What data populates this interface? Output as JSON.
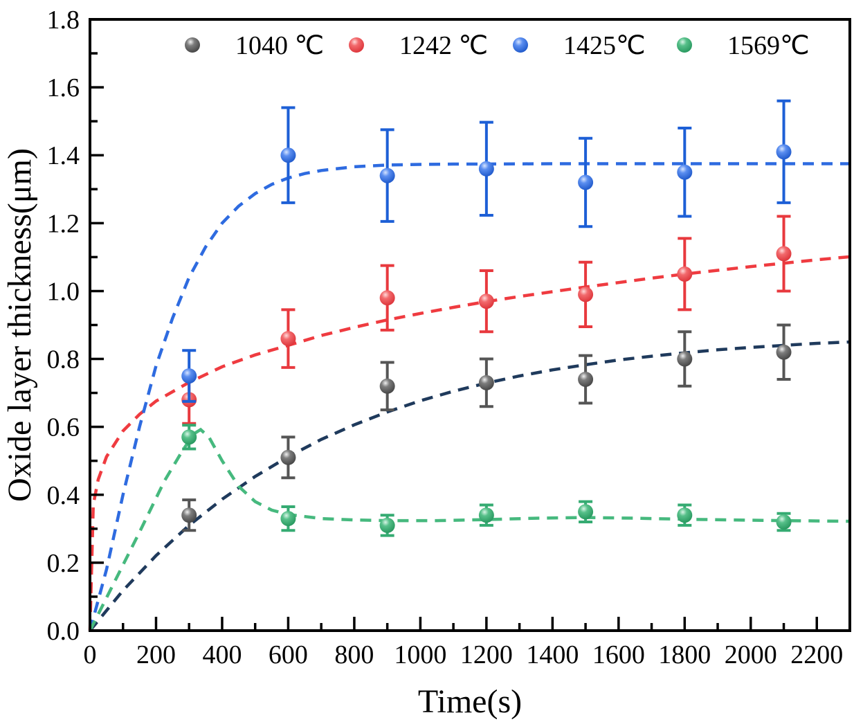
{
  "figure": {
    "background": "#ffffff"
  },
  "chart_data": {
    "type": "scatter",
    "title": "",
    "xlabel": "Time(s)",
    "ylabel": "Oxide layer thickness(μm)",
    "xlim": [
      0,
      2300
    ],
    "ylim": [
      0,
      1.8
    ],
    "grid": false,
    "x_major_ticks": [
      0,
      200,
      400,
      600,
      800,
      1000,
      1200,
      1400,
      1600,
      1800,
      2000,
      2200
    ],
    "x_tick_labels": [
      "0",
      "200",
      "400",
      "600",
      "800",
      "1000",
      "1200",
      "1400",
      "1600",
      "1800",
      "2000",
      "2200"
    ],
    "x_minor_ticks": [
      100,
      300,
      500,
      700,
      900,
      1100,
      1300,
      1500,
      1700,
      1900,
      2100,
      2300
    ],
    "y_major_ticks": [
      0,
      0.2,
      0.4,
      0.6,
      0.8,
      1.0,
      1.2,
      1.4,
      1.6,
      1.8
    ],
    "y_tick_labels": [
      "0.0",
      "0.2",
      "0.4",
      "0.6",
      "0.8",
      "1.0",
      "1.2",
      "1.4",
      "1.6",
      "1.8"
    ],
    "y_minor_ticks": [
      0.1,
      0.3,
      0.5,
      0.7,
      0.9,
      1.1,
      1.3,
      1.5,
      1.7
    ],
    "legend": {
      "position": "top-inside",
      "labels": [
        "1040 ℃",
        "1242 ℃",
        "1425℃",
        "1569℃"
      ]
    },
    "series": [
      {
        "name": "1040 ℃",
        "slug": "1040c",
        "marker_color": "#4f4f4f",
        "marker_gradient": [
          "#f0f0f0",
          "#7d7d7d",
          "#3c3c3c"
        ],
        "errorbar_color": "#555555",
        "line_color": "#1f3a5c",
        "x": [
          300,
          600,
          900,
          1200,
          1500,
          1800,
          2100
        ],
        "y": [
          0.34,
          0.51,
          0.72,
          0.73,
          0.74,
          0.8,
          0.82
        ],
        "yerr": [
          0.045,
          0.06,
          0.07,
          0.07,
          0.07,
          0.08,
          0.08
        ],
        "fit_x": [
          0,
          100,
          200,
          300,
          400,
          500,
          600,
          700,
          800,
          900,
          1000,
          1100,
          1200,
          1300,
          1400,
          1500,
          1600,
          1700,
          1800,
          1900,
          2000,
          2100,
          2200,
          2300
        ],
        "fit_y": [
          0,
          0.118,
          0.221,
          0.31,
          0.387,
          0.454,
          0.512,
          0.563,
          0.606,
          0.644,
          0.677,
          0.705,
          0.729,
          0.75,
          0.768,
          0.783,
          0.797,
          0.808,
          0.818,
          0.827,
          0.834,
          0.84,
          0.846,
          0.85
        ]
      },
      {
        "name": "1242 ℃",
        "slug": "1242c",
        "marker_color": "#e8393e",
        "marker_gradient": [
          "#ffd9d9",
          "#f26a6d",
          "#d92b31"
        ],
        "errorbar_color": "#e8393e",
        "line_color": "#ef3b40",
        "x": [
          300,
          600,
          900,
          1200,
          1500,
          1800,
          2100
        ],
        "y": [
          0.68,
          0.86,
          0.98,
          0.97,
          0.99,
          1.05,
          1.11
        ],
        "yerr": [
          0.07,
          0.085,
          0.095,
          0.09,
          0.095,
          0.105,
          0.11
        ],
        "fit_x": [
          0,
          10,
          25,
          50,
          100,
          150,
          200,
          300,
          400,
          500,
          600,
          700,
          800,
          900,
          1000,
          1100,
          1200,
          1300,
          1400,
          1500,
          1600,
          1700,
          1800,
          1900,
          2000,
          2100,
          2200,
          2300
        ],
        "fit_y": [
          0,
          0.371,
          0.445,
          0.512,
          0.588,
          0.637,
          0.676,
          0.731,
          0.777,
          0.812,
          0.84,
          0.869,
          0.893,
          0.915,
          0.934,
          0.952,
          0.969,
          0.984,
          0.998,
          1.012,
          1.025,
          1.038,
          1.05,
          1.061,
          1.072,
          1.082,
          1.092,
          1.101
        ]
      },
      {
        "name": "1425℃",
        "slug": "1425c",
        "marker_color": "#1d5fd6",
        "marker_gradient": [
          "#d6e4ff",
          "#5b8ef0",
          "#1550c4"
        ],
        "errorbar_color": "#1d5fd6",
        "line_color": "#2e6be0",
        "x": [
          300,
          600,
          900,
          1200,
          1500,
          1800,
          2100
        ],
        "y": [
          0.75,
          1.4,
          1.34,
          1.36,
          1.32,
          1.35,
          1.41
        ],
        "yerr": [
          0.075,
          0.14,
          0.135,
          0.137,
          0.13,
          0.13,
          0.15
        ],
        "fit_x": [
          0,
          50,
          100,
          150,
          200,
          250,
          300,
          350,
          400,
          450,
          500,
          550,
          600,
          650,
          700,
          800,
          900,
          1000,
          1100,
          1200,
          1400,
          1600,
          1800,
          2000,
          2100,
          2300
        ],
        "fit_y": [
          0,
          0.18,
          0.4,
          0.6,
          0.78,
          0.92,
          1.04,
          1.13,
          1.2,
          1.25,
          1.287,
          1.314,
          1.333,
          1.346,
          1.355,
          1.366,
          1.371,
          1.373,
          1.374,
          1.374,
          1.375,
          1.375,
          1.375,
          1.375,
          1.375,
          1.375
        ]
      },
      {
        "name": "1569℃",
        "slug": "1569c",
        "marker_color": "#2fa56a",
        "marker_gradient": [
          "#d8f5e6",
          "#57c08a",
          "#1f9157"
        ],
        "errorbar_color": "#35ab72",
        "line_color": "#46b97e",
        "x": [
          300,
          600,
          900,
          1200,
          1500,
          1800,
          2100
        ],
        "y": [
          0.57,
          0.33,
          0.31,
          0.34,
          0.35,
          0.34,
          0.32
        ],
        "yerr": [
          0.035,
          0.035,
          0.03,
          0.03,
          0.03,
          0.03,
          0.025
        ],
        "fit_x": [
          0,
          75,
          150,
          225,
          280,
          315,
          335,
          360,
          400,
          450,
          500,
          550,
          600,
          700,
          800,
          900,
          1050,
          1200,
          1350,
          1500,
          1650,
          1800,
          1950,
          2100,
          2300
        ],
        "fit_y": [
          0,
          0.145,
          0.29,
          0.44,
          0.53,
          0.58,
          0.592,
          0.57,
          0.5,
          0.425,
          0.38,
          0.355,
          0.342,
          0.33,
          0.326,
          0.324,
          0.324,
          0.327,
          0.331,
          0.333,
          0.331,
          0.328,
          0.326,
          0.324,
          0.322
        ]
      }
    ]
  }
}
